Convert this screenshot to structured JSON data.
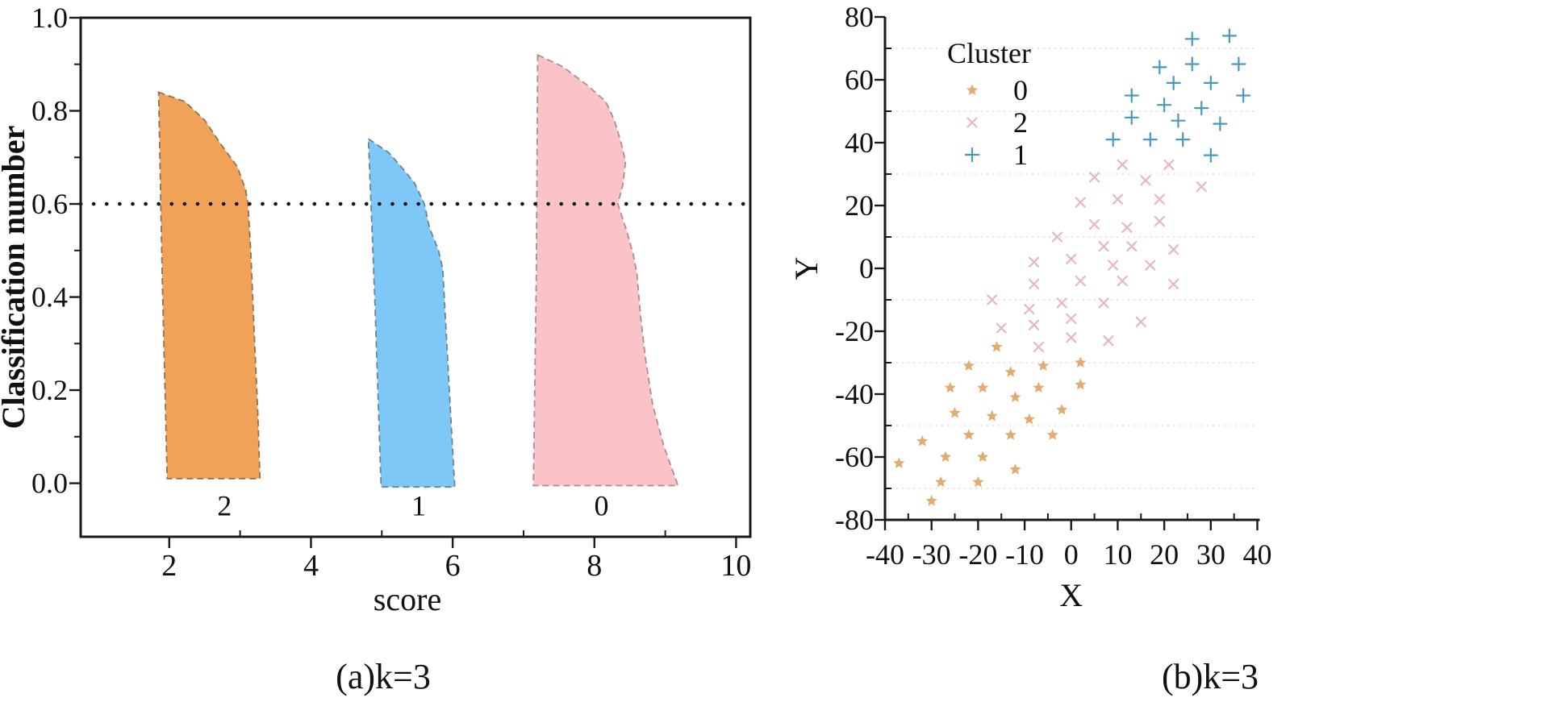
{
  "chart_data": [
    {
      "type": "area",
      "name": "silhouette-plot",
      "title": "",
      "xlabel": "score",
      "ylabel": "Classification number",
      "xlim": [
        0.75,
        10.2
      ],
      "ylim": [
        -0.115,
        1.0
      ],
      "xticks": [
        2,
        4,
        6,
        8,
        10
      ],
      "xtick_labels": [
        "2",
        "4",
        "6",
        "8",
        "10"
      ],
      "xminor": [
        3,
        5,
        7,
        9
      ],
      "yticks": [
        0.0,
        0.2,
        0.4,
        0.6,
        0.8,
        1.0
      ],
      "ytick_labels": [
        "0.0",
        "0.2",
        "0.4",
        "0.6",
        "0.8",
        "1.0"
      ],
      "yminor": [
        0.1,
        0.3,
        0.5,
        0.7,
        0.9
      ],
      "threshold": {
        "y": 0.6,
        "style": "dotted",
        "color": "#151515"
      },
      "series": [
        {
          "name": "cluster-2",
          "label": "2",
          "label_x": 2.78,
          "fill": "#f0a259",
          "stroke": "#8d7355",
          "outline": [
            [
              1.85,
              0.84
            ],
            [
              2.22,
              0.82
            ],
            [
              2.5,
              0.78
            ],
            [
              2.72,
              0.73
            ],
            [
              2.96,
              0.68
            ],
            [
              3.08,
              0.63
            ],
            [
              3.11,
              0.6
            ],
            [
              3.15,
              0.5
            ],
            [
              3.2,
              0.32
            ],
            [
              3.25,
              0.15
            ],
            [
              3.28,
              0.01
            ],
            [
              1.97,
              0.01
            ],
            [
              1.9,
              0.45
            ],
            [
              1.85,
              0.84
            ]
          ]
        },
        {
          "name": "cluster-1",
          "label": "1",
          "label_x": 5.52,
          "fill": "#7ec8f7",
          "stroke": "#6e8291",
          "outline": [
            [
              4.81,
              0.74
            ],
            [
              5.1,
              0.71
            ],
            [
              5.3,
              0.675
            ],
            [
              5.46,
              0.645
            ],
            [
              5.6,
              0.6
            ],
            [
              5.67,
              0.55
            ],
            [
              5.8,
              0.5
            ],
            [
              5.86,
              0.46
            ],
            [
              5.9,
              0.35
            ],
            [
              5.97,
              0.15
            ],
            [
              6.03,
              -0.008
            ],
            [
              4.99,
              -0.008
            ],
            [
              4.9,
              0.4
            ],
            [
              4.81,
              0.74
            ]
          ]
        },
        {
          "name": "cluster-0",
          "label": "0",
          "label_x": 8.1,
          "fill": "#f9c3c8",
          "stroke": "#b18a91",
          "outline": [
            [
              7.2,
              0.92
            ],
            [
              7.55,
              0.895
            ],
            [
              7.9,
              0.855
            ],
            [
              8.16,
              0.82
            ],
            [
              8.28,
              0.78
            ],
            [
              8.38,
              0.73
            ],
            [
              8.44,
              0.69
            ],
            [
              8.4,
              0.64
            ],
            [
              8.33,
              0.6
            ],
            [
              8.46,
              0.54
            ],
            [
              8.55,
              0.49
            ],
            [
              8.6,
              0.45
            ],
            [
              8.65,
              0.36
            ],
            [
              8.72,
              0.27
            ],
            [
              8.82,
              0.17
            ],
            [
              8.98,
              0.08
            ],
            [
              9.18,
              -0.005
            ],
            [
              7.14,
              -0.005
            ],
            [
              7.18,
              0.45
            ],
            [
              7.2,
              0.92
            ]
          ]
        }
      ],
      "caption": "(a)k=3"
    },
    {
      "type": "scatter",
      "name": "cluster-scatter",
      "title": "",
      "xlabel": "X",
      "ylabel": "Y",
      "xlim": [
        -40,
        40
      ],
      "ylim": [
        -80,
        80
      ],
      "xticks": [
        -40,
        -30,
        -20,
        -10,
        0,
        10,
        20,
        30,
        40
      ],
      "xtick_labels": [
        "-40",
        "-30",
        "-20",
        "-10",
        "0",
        "10",
        "20",
        "30",
        "40"
      ],
      "xminor": [
        -35,
        -25,
        -15,
        -5,
        5,
        15,
        25,
        35
      ],
      "yticks": [
        -80,
        -60,
        -40,
        -20,
        0,
        20,
        40,
        60,
        80
      ],
      "ytick_labels": [
        "-80",
        "-60",
        "-40",
        "-20",
        "0",
        "20",
        "40",
        "60",
        "80"
      ],
      "yminor": [
        -70,
        -50,
        -30,
        -10,
        10,
        30,
        50,
        70
      ],
      "grid_y": [
        -70,
        -50,
        -30,
        -10,
        10,
        30,
        50,
        70
      ],
      "grid_color": "#edd9d9",
      "legend": {
        "title": "Cluster",
        "entries": [
          {
            "label": "0",
            "marker": "star",
            "color": "#dfa361"
          },
          {
            "label": "2",
            "marker": "x",
            "color": "#e7b6c3"
          },
          {
            "label": "1",
            "marker": "plus",
            "color": "#4899bd"
          }
        ]
      },
      "series": [
        {
          "name": "cluster-0",
          "marker": "star",
          "color": "#dfa361",
          "points": [
            [
              -16,
              -25
            ],
            [
              -22,
              -31
            ],
            [
              -6,
              -31
            ],
            [
              2,
              -30
            ],
            [
              -13,
              -33
            ],
            [
              -26,
              -38
            ],
            [
              -19,
              -38
            ],
            [
              -7,
              -38
            ],
            [
              2,
              -37
            ],
            [
              -12,
              -41
            ],
            [
              -25,
              -46
            ],
            [
              -2,
              -45
            ],
            [
              -17,
              -47
            ],
            [
              -9,
              -48
            ],
            [
              -22,
              -53
            ],
            [
              -13,
              -53
            ],
            [
              -4,
              -53
            ],
            [
              -32,
              -55
            ],
            [
              -27,
              -60
            ],
            [
              -19,
              -60
            ],
            [
              -37,
              -62
            ],
            [
              -12,
              -64
            ],
            [
              -28,
              -68
            ],
            [
              -20,
              -68
            ],
            [
              -30,
              -74
            ]
          ]
        },
        {
          "name": "cluster-2",
          "marker": "x",
          "color": "#e7b6c3",
          "points": [
            [
              11,
              33
            ],
            [
              21,
              33
            ],
            [
              5,
              29
            ],
            [
              16,
              28
            ],
            [
              28,
              26
            ],
            [
              2,
              21
            ],
            [
              10,
              22
            ],
            [
              19,
              22
            ],
            [
              5,
              14
            ],
            [
              12,
              13
            ],
            [
              19,
              15
            ],
            [
              -3,
              10
            ],
            [
              7,
              7
            ],
            [
              13,
              7
            ],
            [
              22,
              6
            ],
            [
              -8,
              2
            ],
            [
              0,
              3
            ],
            [
              9,
              1
            ],
            [
              17,
              1
            ],
            [
              2,
              -4
            ],
            [
              11,
              -4
            ],
            [
              -8,
              -5
            ],
            [
              22,
              -5
            ],
            [
              -17,
              -10
            ],
            [
              -2,
              -11
            ],
            [
              7,
              -11
            ],
            [
              -9,
              -13
            ],
            [
              -15,
              -19
            ],
            [
              -8,
              -18
            ],
            [
              0,
              -16
            ],
            [
              15,
              -17
            ],
            [
              0,
              -22
            ],
            [
              8,
              -23
            ],
            [
              -7,
              -25
            ]
          ]
        },
        {
          "name": "cluster-1",
          "marker": "plus",
          "color": "#4899bd",
          "points": [
            [
              26,
              73
            ],
            [
              34,
              74
            ],
            [
              19,
              64
            ],
            [
              26,
              65
            ],
            [
              36,
              65
            ],
            [
              22,
              59
            ],
            [
              30,
              59
            ],
            [
              13,
              55
            ],
            [
              37,
              55
            ],
            [
              20,
              52
            ],
            [
              28,
              51
            ],
            [
              13,
              48
            ],
            [
              23,
              47
            ],
            [
              32,
              46
            ],
            [
              9,
              41
            ],
            [
              17,
              41
            ],
            [
              24,
              41
            ],
            [
              30,
              36
            ]
          ]
        }
      ],
      "caption": "(b)k=3"
    }
  ]
}
